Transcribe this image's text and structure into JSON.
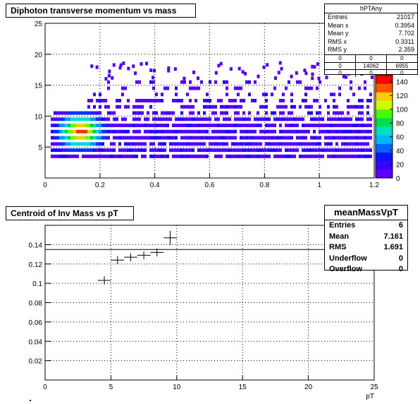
{
  "top_panel": {
    "title": "Diphoton transverse momentum vs mass",
    "stats": {
      "name": "hPTAny",
      "rows": [
        {
          "label": "Entries",
          "value": "21017"
        },
        {
          "label": "Mean x",
          "value": "0.3954"
        },
        {
          "label": "Mean y",
          "value": "7.702"
        },
        {
          "label": "RMS x",
          "value": "0.3311"
        },
        {
          "label": "RMS y",
          "value": "2.359"
        }
      ],
      "grid": [
        [
          "0",
          "0",
          "0"
        ],
        [
          "0",
          "14062",
          "6955"
        ],
        [
          "0",
          "0",
          "0"
        ]
      ]
    },
    "palette_labels": [
      "0",
      "20",
      "40",
      "60",
      "80",
      "100",
      "120",
      "140"
    ]
  },
  "bottom_panel": {
    "title": "Centroid of Inv Mass vs pT",
    "stats": {
      "name": "meanMassVpT",
      "rows": [
        {
          "label": "Entries",
          "value": "6"
        },
        {
          "label": "Mean",
          "value": "7.161"
        },
        {
          "label": "RMS",
          "value": "1.691"
        },
        {
          "label": "Underflow",
          "value": "0"
        },
        {
          "label": "Overflow",
          "value": "0"
        }
      ]
    }
  },
  "chart_data": [
    {
      "type": "heatmap",
      "title": "Diphoton transverse momentum vs mass",
      "xlabel": "",
      "ylabel": "",
      "xlim": [
        0,
        1.2
      ],
      "ylim": [
        0,
        25
      ],
      "x_ticks": [
        "0",
        "0.2",
        "0.4",
        "0.6",
        "0.8",
        "1",
        "1.2"
      ],
      "y_ticks": [
        "5",
        "10",
        "15",
        "20",
        "25"
      ],
      "z_range": [
        0,
        150
      ],
      "grid": true,
      "occupied_band_y": [
        3,
        16
      ],
      "peak": {
        "x": 0.13,
        "y": 7.5,
        "z": 150
      },
      "colors": [
        "#5500ff",
        "#2200ff",
        "#0033ff",
        "#0099ff",
        "#00ddcc",
        "#00cc44",
        "#66ff00",
        "#ffcc00",
        "#ff3300"
      ]
    },
    {
      "type": "scatter",
      "title": "Centroid of Inv Mass vs pT",
      "xlabel": "pT",
      "ylabel": "",
      "xlim": [
        0,
        25
      ],
      "ylim": [
        0,
        0.16
      ],
      "x_ticks": [
        "0",
        "5",
        "10",
        "15",
        "20",
        "25"
      ],
      "y_ticks": [
        "0.02",
        "0.04",
        "0.06",
        "0.08",
        "0.1",
        "0.12",
        "0.14"
      ],
      "grid": true,
      "horizontal_line_y": 0.135,
      "points": [
        {
          "x": 4.5,
          "y": 0.103,
          "xerr": 0.5,
          "yerr": 0.002
        },
        {
          "x": 5.5,
          "y": 0.124,
          "xerr": 0.5,
          "yerr": 0.002
        },
        {
          "x": 6.5,
          "y": 0.127,
          "xerr": 0.5,
          "yerr": 0.002
        },
        {
          "x": 7.5,
          "y": 0.129,
          "xerr": 0.5,
          "yerr": 0.002
        },
        {
          "x": 8.5,
          "y": 0.132,
          "xerr": 0.5,
          "yerr": 0.002
        },
        {
          "x": 9.5,
          "y": 0.147,
          "xerr": 0.5,
          "yerr": 0.005
        }
      ]
    }
  ]
}
